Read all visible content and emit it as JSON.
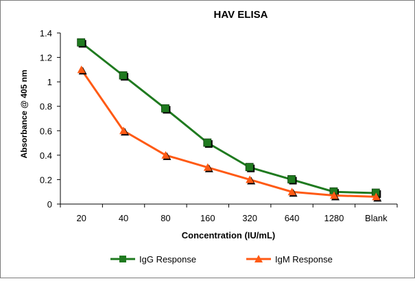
{
  "chart_data": {
    "type": "line",
    "title": "HAV ELISA",
    "xlabel": "Concentration (IU/mL)",
    "ylabel": "Absorbance @ 405 nm",
    "categories": [
      "20",
      "40",
      "80",
      "160",
      "320",
      "640",
      "1280",
      "Blank"
    ],
    "ylim": [
      0,
      1.4
    ],
    "yticks": [
      "0",
      "0.2",
      "0.4",
      "0.6",
      "0.8",
      "1",
      "1.2",
      "1.4"
    ],
    "grid": false,
    "legend_position": "bottom",
    "series": [
      {
        "name": "IgG Response",
        "marker": "square",
        "color": "#1f7a1f",
        "values": [
          1.32,
          1.05,
          0.78,
          0.5,
          0.3,
          0.2,
          0.1,
          0.09
        ]
      },
      {
        "name": "IgM Response",
        "marker": "triangle",
        "color": "#ff5a14",
        "values": [
          1.1,
          0.6,
          0.4,
          0.3,
          0.2,
          0.1,
          0.07,
          0.06
        ]
      }
    ]
  }
}
